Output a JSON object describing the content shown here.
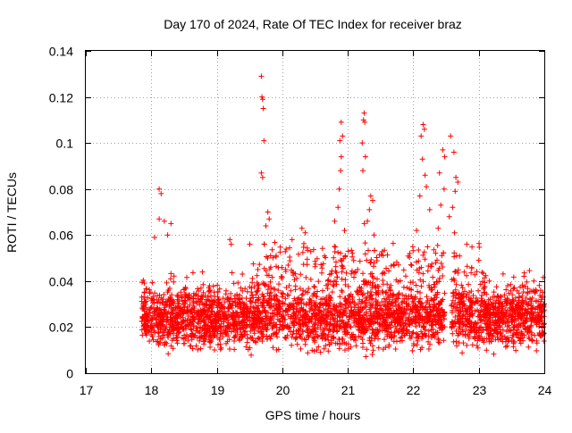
{
  "chart_data": {
    "type": "scatter",
    "title": "Day 170 of 2024, Rate Of TEC Index for receiver braz",
    "xlabel": "GPS time / hours",
    "ylabel": "ROTI / TECUs",
    "xlim": [
      17,
      24
    ],
    "ylim": [
      0,
      0.14
    ],
    "x_ticks": [
      17,
      18,
      19,
      20,
      21,
      22,
      23,
      24
    ],
    "x_tick_labels": [
      "17",
      "18",
      "19",
      "20",
      "21",
      "22",
      "23",
      "24"
    ],
    "y_ticks": [
      0,
      0.02,
      0.04,
      0.06,
      0.08,
      0.1,
      0.12,
      0.14
    ],
    "y_tick_labels": [
      "0",
      "0.02",
      "0.04",
      "0.06",
      "0.08",
      "0.1",
      "0.12",
      "0.14"
    ],
    "grid": true,
    "marker": "+",
    "color": "#ff0000",
    "series": [
      {
        "name": "ROTI",
        "x_range": [
          17.85,
          24.0
        ],
        "typical_range": [
          0.005,
          0.045
        ],
        "data_gap": [
          22.48,
          22.58
        ],
        "peaks": [
          {
            "x": 18.12,
            "y": 0.08
          },
          {
            "x": 18.15,
            "y": 0.078
          },
          {
            "x": 18.12,
            "y": 0.067
          },
          {
            "x": 18.2,
            "y": 0.066
          },
          {
            "x": 18.25,
            "y": 0.06
          },
          {
            "x": 18.3,
            "y": 0.065
          },
          {
            "x": 18.05,
            "y": 0.059
          },
          {
            "x": 19.2,
            "y": 0.058
          },
          {
            "x": 19.22,
            "y": 0.056
          },
          {
            "x": 19.68,
            "y": 0.129
          },
          {
            "x": 19.69,
            "y": 0.12
          },
          {
            "x": 19.7,
            "y": 0.119
          },
          {
            "x": 19.71,
            "y": 0.115
          },
          {
            "x": 19.72,
            "y": 0.101
          },
          {
            "x": 19.68,
            "y": 0.087
          },
          {
            "x": 19.7,
            "y": 0.085
          },
          {
            "x": 19.78,
            "y": 0.07
          },
          {
            "x": 19.8,
            "y": 0.067
          },
          {
            "x": 19.75,
            "y": 0.064
          },
          {
            "x": 20.3,
            "y": 0.063
          },
          {
            "x": 20.35,
            "y": 0.061
          },
          {
            "x": 20.15,
            "y": 0.058
          },
          {
            "x": 20.9,
            "y": 0.109
          },
          {
            "x": 20.92,
            "y": 0.103
          },
          {
            "x": 20.88,
            "y": 0.101
          },
          {
            "x": 20.9,
            "y": 0.094
          },
          {
            "x": 20.89,
            "y": 0.088
          },
          {
            "x": 20.87,
            "y": 0.08
          },
          {
            "x": 20.85,
            "y": 0.072
          },
          {
            "x": 20.8,
            "y": 0.066
          },
          {
            "x": 20.95,
            "y": 0.062
          },
          {
            "x": 21.25,
            "y": 0.113
          },
          {
            "x": 21.24,
            "y": 0.11
          },
          {
            "x": 21.26,
            "y": 0.109
          },
          {
            "x": 21.22,
            "y": 0.1
          },
          {
            "x": 21.27,
            "y": 0.094
          },
          {
            "x": 21.23,
            "y": 0.088
          },
          {
            "x": 21.35,
            "y": 0.077
          },
          {
            "x": 21.38,
            "y": 0.075
          },
          {
            "x": 21.33,
            "y": 0.071
          },
          {
            "x": 21.3,
            "y": 0.066
          },
          {
            "x": 21.25,
            "y": 0.065
          },
          {
            "x": 21.4,
            "y": 0.06
          },
          {
            "x": 22.15,
            "y": 0.108
          },
          {
            "x": 22.17,
            "y": 0.106
          },
          {
            "x": 22.12,
            "y": 0.103
          },
          {
            "x": 22.14,
            "y": 0.093
          },
          {
            "x": 22.18,
            "y": 0.086
          },
          {
            "x": 22.2,
            "y": 0.081
          },
          {
            "x": 22.1,
            "y": 0.077
          },
          {
            "x": 22.25,
            "y": 0.071
          },
          {
            "x": 22.05,
            "y": 0.062
          },
          {
            "x": 22.45,
            "y": 0.097
          },
          {
            "x": 22.48,
            "y": 0.094
          },
          {
            "x": 22.4,
            "y": 0.087
          },
          {
            "x": 22.47,
            "y": 0.08
          },
          {
            "x": 22.42,
            "y": 0.073
          },
          {
            "x": 22.38,
            "y": 0.063
          },
          {
            "x": 22.57,
            "y": 0.103
          },
          {
            "x": 22.62,
            "y": 0.096
          },
          {
            "x": 22.65,
            "y": 0.085
          },
          {
            "x": 22.68,
            "y": 0.083
          },
          {
            "x": 22.64,
            "y": 0.079
          },
          {
            "x": 22.6,
            "y": 0.072
          },
          {
            "x": 22.55,
            "y": 0.068
          },
          {
            "x": 22.63,
            "y": 0.061
          }
        ]
      }
    ]
  }
}
